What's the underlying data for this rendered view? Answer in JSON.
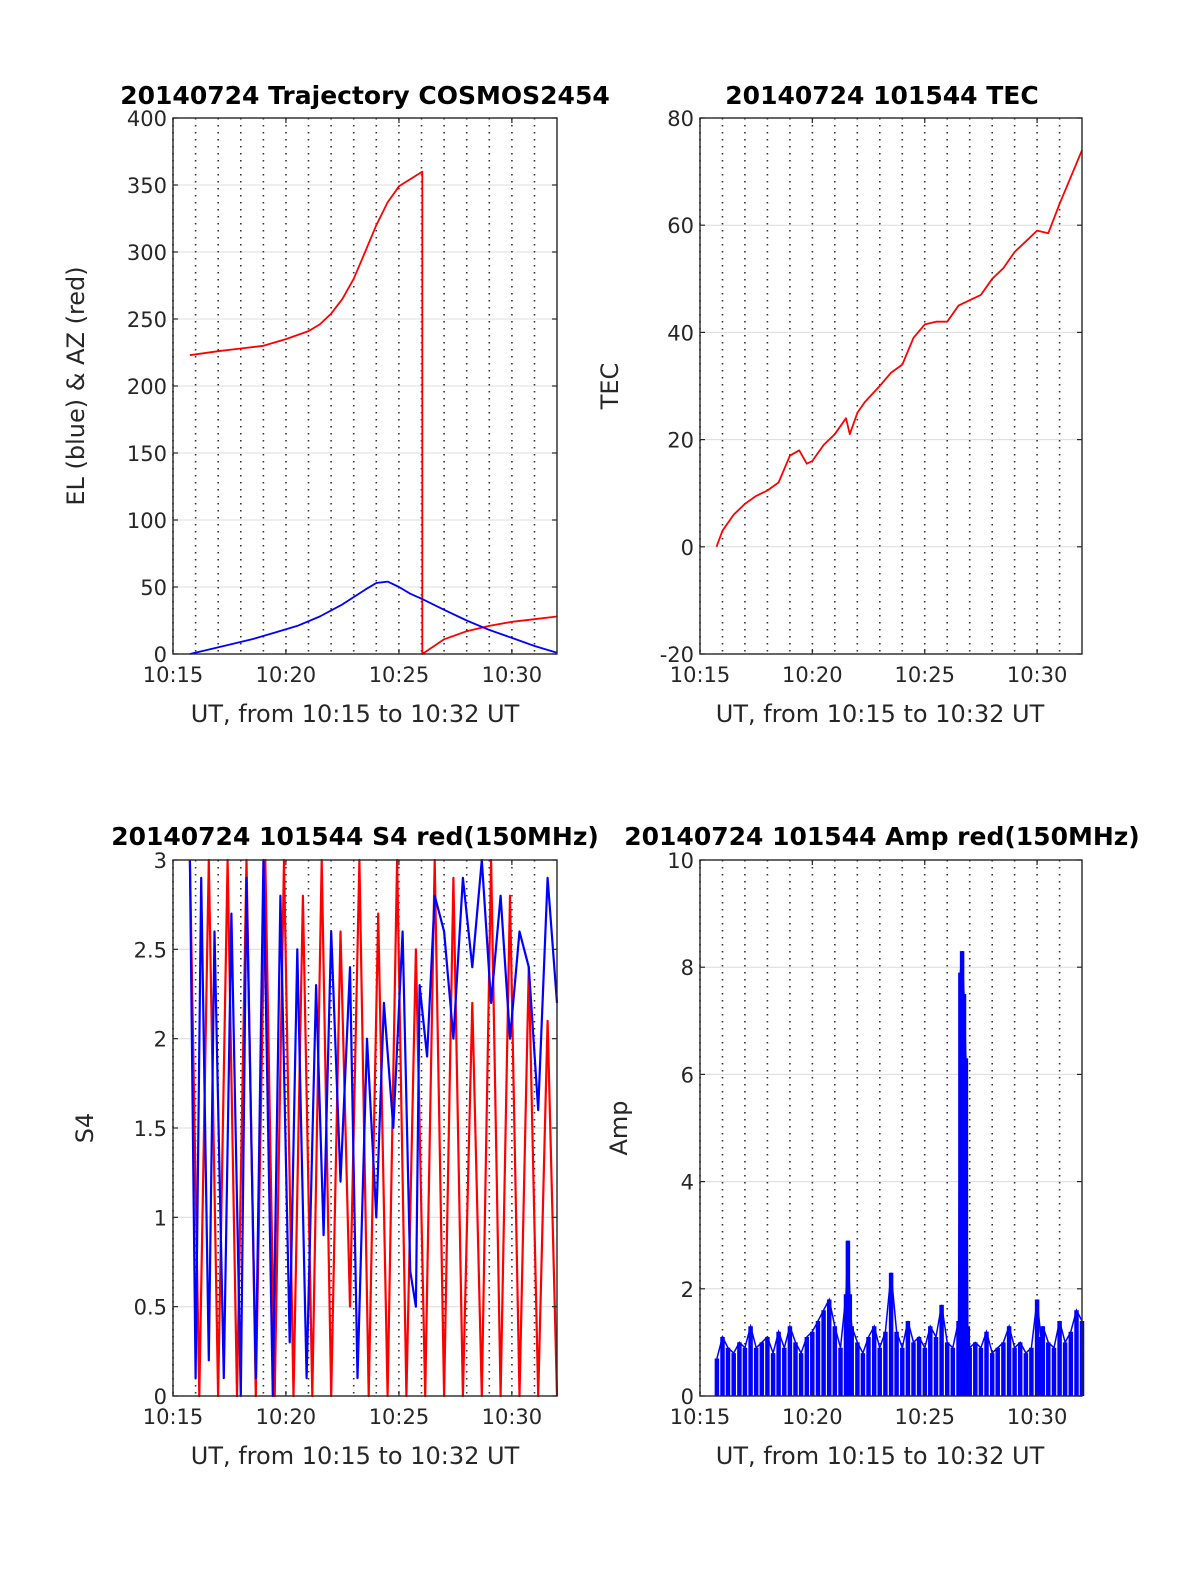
{
  "chart_data": [
    {
      "type": "line",
      "title": "20140724 Trajectory COSMOS2454",
      "xlabel": "UT, from 10:15 to 10:32 UT",
      "ylabel": "EL (blue) & AZ (red)",
      "xlim": [
        10.25,
        10.5333
      ],
      "ylim": [
        0,
        400
      ],
      "xticks": [
        {
          "v": 10.25,
          "label": "10:15"
        },
        {
          "v": 10.3333,
          "label": "10:20"
        },
        {
          "v": 10.4167,
          "label": "10:25"
        },
        {
          "v": 10.5,
          "label": "10:30"
        }
      ],
      "yticks": [
        {
          "v": 0,
          "label": "0"
        },
        {
          "v": 50,
          "label": "50"
        },
        {
          "v": 100,
          "label": "100"
        },
        {
          "v": 150,
          "label": "150"
        },
        {
          "v": 200,
          "label": "200"
        },
        {
          "v": 250,
          "label": "250"
        },
        {
          "v": 300,
          "label": "300"
        },
        {
          "v": 350,
          "label": "350"
        },
        {
          "v": 400,
          "label": "400"
        }
      ],
      "minor_xgrid_step_minutes": 1,
      "grid": true,
      "series": [
        {
          "color": "#ff0000",
          "x": [
            10.2625,
            10.2833,
            10.3,
            10.3167,
            10.3333,
            10.35,
            10.3583,
            10.3667,
            10.375,
            10.3833,
            10.3917,
            10.4,
            10.4083,
            10.4167,
            10.4339,
            10.4339,
            10.4339,
            10.45,
            10.4667,
            10.4833,
            10.5,
            10.5167,
            10.5333
          ],
          "y": [
            223,
            226,
            228,
            230,
            235,
            241,
            246,
            254,
            265,
            280,
            300,
            320,
            337,
            349,
            360,
            0,
            0,
            11,
            17,
            21,
            24,
            26,
            28
          ]
        },
        {
          "color": "#0000ff",
          "x": [
            10.2625,
            10.275,
            10.2917,
            10.3083,
            10.325,
            10.3417,
            10.3583,
            10.375,
            10.3917,
            10.4,
            10.4083,
            10.4167,
            10.425,
            10.4339,
            10.45,
            10.4667,
            10.4833,
            10.5,
            10.5167,
            10.5333
          ],
          "y": [
            0,
            3,
            7,
            11,
            16,
            21,
            28,
            37,
            48,
            53,
            54,
            50,
            45,
            41,
            33,
            25,
            18,
            12,
            6,
            1
          ]
        }
      ]
    },
    {
      "type": "line",
      "title": "20140724 101544 TEC",
      "xlabel": "UT, from 10:15 to 10:32 UT",
      "ylabel": "TEC",
      "xlim": [
        10.25,
        10.5333
      ],
      "ylim": [
        -20,
        80
      ],
      "xticks": [
        {
          "v": 10.25,
          "label": "10:15"
        },
        {
          "v": 10.3333,
          "label": "10:20"
        },
        {
          "v": 10.4167,
          "label": "10:25"
        },
        {
          "v": 10.5,
          "label": "10:30"
        }
      ],
      "yticks": [
        {
          "v": -20,
          "label": "-20"
        },
        {
          "v": 0,
          "label": "0"
        },
        {
          "v": 20,
          "label": "20"
        },
        {
          "v": 40,
          "label": "40"
        },
        {
          "v": 60,
          "label": "60"
        },
        {
          "v": 80,
          "label": "80"
        }
      ],
      "minor_xgrid_step_minutes": 1,
      "grid": true,
      "series": [
        {
          "color": "#ff0000",
          "x": [
            10.2622,
            10.2667,
            10.275,
            10.2833,
            10.2917,
            10.3,
            10.3083,
            10.3167,
            10.3236,
            10.3292,
            10.3333,
            10.3417,
            10.35,
            10.3583,
            10.3611,
            10.3667,
            10.3722,
            10.3833,
            10.3917,
            10.4,
            10.4083,
            10.4167,
            10.425,
            10.4333,
            10.4417,
            10.45,
            10.4583,
            10.4667,
            10.475,
            10.4833,
            10.4917,
            10.5,
            10.5083,
            10.5167,
            10.5333
          ],
          "y": [
            0,
            3,
            6,
            8,
            9.5,
            10.5,
            12,
            17,
            18,
            15.5,
            16,
            19,
            21,
            24,
            21,
            25,
            27,
            30,
            32.5,
            34,
            39,
            41.5,
            42,
            42,
            45,
            46,
            47,
            50,
            52,
            55,
            57,
            59,
            58.5,
            64,
            74
          ]
        }
      ]
    },
    {
      "type": "line",
      "title": "20140724 101544 S4 red(150MHz)",
      "xlabel": "UT, from 10:15 to 10:32 UT",
      "ylabel": "S4",
      "xlim": [
        10.25,
        10.5333
      ],
      "ylim": [
        0,
        3
      ],
      "xticks": [
        {
          "v": 10.25,
          "label": "10:15"
        },
        {
          "v": 10.3333,
          "label": "10:20"
        },
        {
          "v": 10.4167,
          "label": "10:25"
        },
        {
          "v": 10.5,
          "label": "10:30"
        }
      ],
      "yticks": [
        {
          "v": 0,
          "label": "0"
        },
        {
          "v": 0.5,
          "label": "0.5"
        },
        {
          "v": 1,
          "label": "1"
        },
        {
          "v": 1.5,
          "label": "1.5"
        },
        {
          "v": 2,
          "label": "2"
        },
        {
          "v": 2.5,
          "label": "2.5"
        },
        {
          "v": 3,
          "label": "3"
        }
      ],
      "minor_xgrid_step_minutes": 1,
      "grid": true,
      "series": [
        {
          "color": "#ff0000",
          "x": [
            10.2625,
            10.2694,
            10.2764,
            10.2833,
            10.2903,
            10.2972,
            10.3042,
            10.3111,
            10.3181,
            10.325,
            10.3319,
            10.3389,
            10.3458,
            10.3528,
            10.3597,
            10.3667,
            10.3736,
            10.3806,
            10.3875,
            10.3944,
            10.4014,
            10.4083,
            10.4153,
            10.4222,
            10.4292,
            10.4361,
            10.4431,
            10.45,
            10.4569,
            10.4639,
            10.4708,
            10.4778,
            10.4847,
            10.4917,
            10.4986,
            10.5056,
            10.5125,
            10.5194,
            10.5264,
            10.5333
          ],
          "y": [
            3,
            0,
            3,
            0,
            3,
            0,
            3,
            0,
            3,
            0,
            3,
            0,
            2.8,
            0,
            3,
            0,
            2.6,
            0.5,
            3,
            0,
            2.7,
            0,
            3,
            0,
            2.5,
            0,
            3,
            0,
            2.9,
            0,
            2.2,
            0,
            3,
            0,
            2.8,
            0,
            2.4,
            0,
            2.1,
            0
          ]
        },
        {
          "color": "#0000ff",
          "x": [
            10.2625,
            10.2667,
            10.2708,
            10.2764,
            10.2806,
            10.2875,
            10.2931,
            10.3,
            10.3042,
            10.3111,
            10.3167,
            10.3236,
            10.3292,
            10.3361,
            10.3417,
            10.3486,
            10.3556,
            10.3611,
            10.3667,
            10.3736,
            10.3806,
            10.3861,
            10.3931,
            10.4,
            10.4056,
            10.4125,
            10.4194,
            10.425,
            10.4292,
            10.4319,
            10.4375,
            10.4431,
            10.45,
            10.4569,
            10.4639,
            10.4708,
            10.4778,
            10.4847,
            10.4917,
            10.4986,
            10.5056,
            10.5125,
            10.5194,
            10.5264,
            10.5333
          ],
          "y": [
            3,
            0.1,
            2.9,
            0.2,
            2.6,
            0.1,
            2.7,
            0,
            2.9,
            0.1,
            3,
            0,
            2.8,
            0.3,
            2.5,
            0.1,
            2.3,
            0.9,
            2.6,
            1.2,
            2.4,
            0.1,
            2.0,
            1.0,
            2.2,
            1.5,
            2.6,
            0.7,
            0.5,
            2.3,
            1.9,
            2.8,
            2.6,
            2.0,
            2.9,
            2.4,
            3.0,
            2.2,
            2.8,
            2.0,
            2.6,
            2.4,
            1.6,
            2.9,
            2.2
          ]
        }
      ]
    },
    {
      "type": "line",
      "title": "20140724 101544 Amp red(150MHz)",
      "xlabel": "UT, from 10:15 to 10:32 UT",
      "ylabel": "Amp",
      "xlim": [
        10.25,
        10.5333
      ],
      "ylim": [
        0,
        10
      ],
      "xticks": [
        {
          "v": 10.25,
          "label": "10:15"
        },
        {
          "v": 10.3333,
          "label": "10:20"
        },
        {
          "v": 10.4167,
          "label": "10:25"
        },
        {
          "v": 10.5,
          "label": "10:30"
        }
      ],
      "yticks": [
        {
          "v": 0,
          "label": "0"
        },
        {
          "v": 2,
          "label": "2"
        },
        {
          "v": 4,
          "label": "4"
        },
        {
          "v": 6,
          "label": "6"
        },
        {
          "v": 8,
          "label": "8"
        },
        {
          "v": 10,
          "label": "10"
        }
      ],
      "minor_xgrid_step_minutes": 1,
      "grid": true,
      "series": [
        {
          "color": "#0000ff",
          "style": "bars",
          "x": [
            10.2625,
            10.2667,
            10.2708,
            10.275,
            10.2792,
            10.2833,
            10.2875,
            10.2917,
            10.2958,
            10.3,
            10.3042,
            10.3083,
            10.3125,
            10.3167,
            10.3208,
            10.325,
            10.3292,
            10.3333,
            10.3375,
            10.3417,
            10.3458,
            10.35,
            10.3542,
            10.3583,
            10.3597,
            10.3611,
            10.3625,
            10.3667,
            10.3708,
            10.375,
            10.3792,
            10.3833,
            10.3875,
            10.3917,
            10.3958,
            10.4,
            10.4042,
            10.4083,
            10.4125,
            10.4167,
            10.4208,
            10.425,
            10.4292,
            10.4333,
            10.4375,
            10.4417,
            10.4431,
            10.4444,
            10.4458,
            10.4472,
            10.4486,
            10.45,
            10.4542,
            10.4583,
            10.4625,
            10.4667,
            10.4708,
            10.475,
            10.4792,
            10.4833,
            10.4875,
            10.4917,
            10.4958,
            10.5,
            10.5028,
            10.5042,
            10.5083,
            10.5125,
            10.5167,
            10.5208,
            10.525,
            10.5292,
            10.5333
          ],
          "y": [
            0.7,
            1.1,
            0.9,
            0.8,
            1.0,
            0.9,
            1.3,
            0.9,
            1.0,
            1.1,
            0.8,
            1.2,
            0.9,
            1.3,
            1.0,
            0.8,
            1.1,
            1.2,
            1.4,
            1.6,
            1.8,
            1.3,
            0.9,
            1.9,
            2.9,
            1.9,
            1.3,
            1.0,
            0.8,
            1.1,
            1.3,
            0.9,
            1.2,
            2.3,
            1.2,
            0.9,
            1.4,
            1.0,
            1.1,
            0.9,
            1.3,
            1.1,
            1.7,
            1.0,
            0.9,
            1.4,
            7.9,
            8.3,
            7.5,
            6.3,
            1.3,
            0.9,
            1.0,
            0.9,
            1.2,
            0.8,
            0.9,
            1.0,
            1.3,
            0.9,
            1.0,
            0.8,
            0.9,
            1.8,
            1.1,
            1.3,
            1.0,
            0.9,
            1.4,
            1.0,
            1.2,
            1.6,
            1.4
          ]
        }
      ]
    }
  ]
}
